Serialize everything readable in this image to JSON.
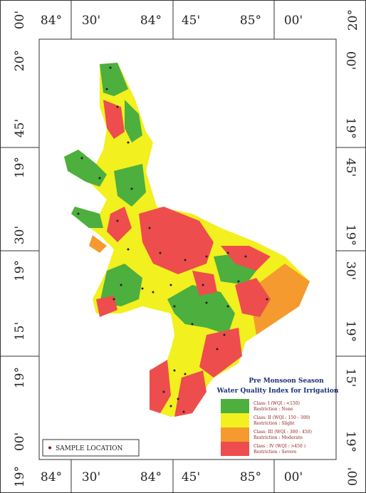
{
  "frame": {
    "top": [
      "00'",
      "84°",
      "30'",
      "84°",
      "45'",
      "85°",
      "00'",
      "20°"
    ],
    "bottom": [
      "19°",
      "84°",
      "30'",
      "84°",
      "45'",
      "85°",
      "00'",
      "00'"
    ],
    "left": [
      "20°",
      "45'",
      "19°",
      "30'",
      "19°",
      "15'",
      "19°",
      "00'"
    ],
    "right": [
      "00'",
      "19°",
      "45'",
      "19°",
      "30'",
      "19°",
      "15'",
      "19°"
    ]
  },
  "legend": {
    "title": "Pre Monsoon Season",
    "subtitle": "Water Quality Index for Irrigation",
    "classes": [
      {
        "class": "Class: I (WQI : <150)",
        "restriction": "Restriction : None",
        "color": "#4caf3e"
      },
      {
        "class": "Class: II (WQI : 150 - 300)",
        "restriction": "Restriction : Slight",
        "color": "#f2f01e"
      },
      {
        "class": "Class: III (WQI : 300 - 450)",
        "restriction": "Restriction : Moderate",
        "color": "#f59a2e"
      },
      {
        "class": "Class : IV (WQI : >450 )",
        "restriction": "Restriction : Severe",
        "color": "#ee4d4d"
      }
    ]
  },
  "sample_key": "SAMPLE LOCATION"
}
